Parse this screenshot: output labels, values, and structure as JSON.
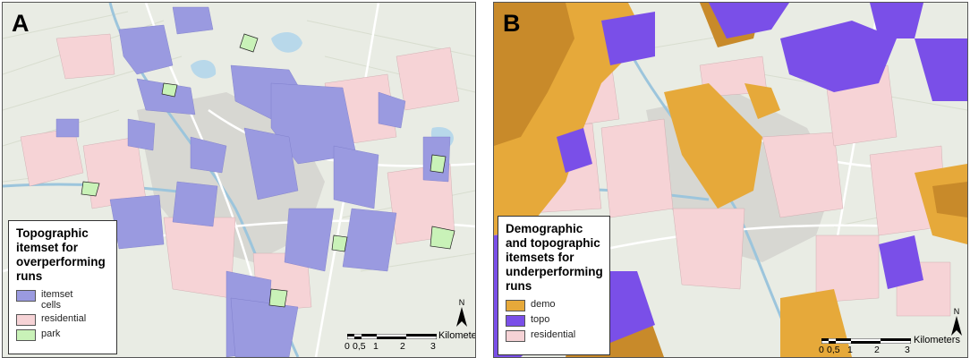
{
  "panel_a": {
    "letter": "A",
    "legend": {
      "title": "Topographic itemset for overperforming runs",
      "items": [
        {
          "label": "itemset cells",
          "color": "#9a9ae0"
        },
        {
          "label": "residential",
          "color": "#f6d3d6"
        },
        {
          "label": "park",
          "color": "#c9f2b8"
        }
      ]
    },
    "scale": {
      "ticks": [
        "0",
        "0,5",
        "1",
        "2",
        "3"
      ],
      "unit": "Kilometers"
    },
    "north_label": "N"
  },
  "panel_b": {
    "letter": "B",
    "legend": {
      "title": "Demographic and topographic itemsets for underperforming runs",
      "items": [
        {
          "label": "demo",
          "color": "#e6a93a"
        },
        {
          "label": "topo",
          "color": "#7a4fe8"
        },
        {
          "label": "residential",
          "color": "#f6d3d6"
        }
      ]
    },
    "scale": {
      "ticks": [
        "0",
        "0,5",
        "1",
        "2",
        "3"
      ],
      "unit": "Kilometers"
    },
    "north_label": "N"
  },
  "colors": {
    "base": "#e9ece4",
    "road": "#ffffff",
    "water": "#b8d8ea",
    "urban": "#d7d7d2",
    "residential": "#f6d3d6",
    "itemset": "#9a9ae0",
    "park": "#c9f2b8",
    "demo": "#e6a93a",
    "demo_dark": "#c88a2a",
    "topo": "#7a4fe8"
  }
}
